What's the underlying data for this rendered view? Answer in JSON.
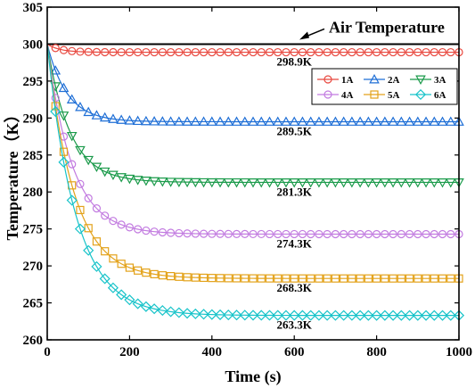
{
  "chart_data": {
    "type": "line",
    "xlabel": "Time (s)",
    "ylabel": "Temperature（K）",
    "xlim": [
      0,
      1000
    ],
    "ylim": [
      260,
      305
    ],
    "xticks": [
      0,
      200,
      400,
      600,
      800,
      1000
    ],
    "yticks": [
      260,
      265,
      270,
      275,
      280,
      285,
      290,
      295,
      300,
      305
    ],
    "grid": false,
    "legend_position": "top-right",
    "reference_line": {
      "label": "Air Temperature",
      "value": 300
    },
    "series": [
      {
        "name": "1A",
        "marker": "circle",
        "color": "#e8483f",
        "initial": 300,
        "final": 298.9,
        "tau": 30
      },
      {
        "name": "2A",
        "marker": "triangle-up",
        "color": "#1f6fd6",
        "initial": 300,
        "final": 289.5,
        "tau": 48
      },
      {
        "name": "3A",
        "marker": "triangle-down",
        "color": "#1a9a4a",
        "initial": 300,
        "final": 281.3,
        "tau": 55
      },
      {
        "name": "4A",
        "marker": "circle",
        "color": "#c27be0",
        "initial": 300,
        "final": 274.3,
        "tau": 60
      },
      {
        "name": "5A",
        "marker": "square",
        "color": "#e3a21a",
        "initial": 300,
        "final": 268.3,
        "tau": 65
      },
      {
        "name": "6A",
        "marker": "diamond",
        "color": "#17c3c9",
        "initial": 300,
        "final": 263.3,
        "tau": 70
      }
    ],
    "annotations": [
      {
        "text": "298.9K",
        "x": 600,
        "y": 298.9
      },
      {
        "text": "289.5K",
        "x": 600,
        "y": 289.5
      },
      {
        "text": "281.3K",
        "x": 600,
        "y": 281.3
      },
      {
        "text": "274.3K",
        "x": 600,
        "y": 274.3
      },
      {
        "text": "268.3K",
        "x": 600,
        "y": 268.3
      },
      {
        "text": "263.3K",
        "x": 600,
        "y": 263.3
      }
    ]
  }
}
